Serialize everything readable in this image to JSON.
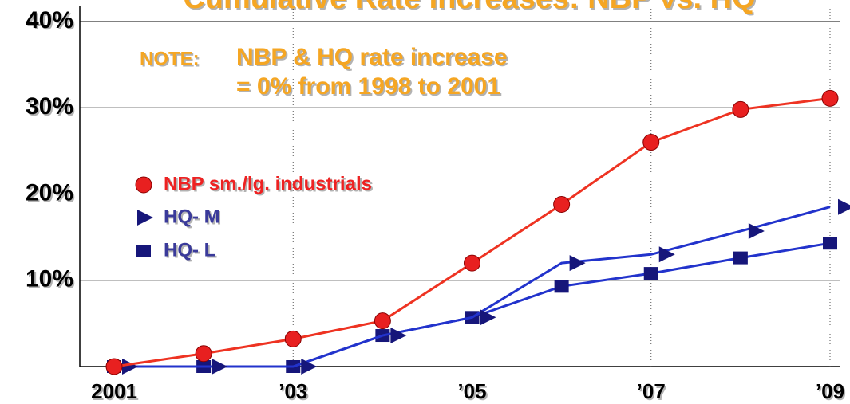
{
  "chart_data": {
    "type": "line",
    "title": "Cumulative Rate Increases: NBP vs. HQ",
    "annotations": [
      "NOTE:",
      "NBP & HQ rate increase",
      "= 0% from 1998 to 2001"
    ],
    "categories": [
      "2001",
      null,
      "’03",
      null,
      "’05",
      null,
      "’07",
      null,
      "’09"
    ],
    "series": [
      {
        "name": "NBP sm./lg. industrials",
        "color": "#ee3322",
        "marker_color": "#e82020",
        "marker": "circle",
        "values": [
          0,
          1.5,
          3.2,
          5.3,
          12.0,
          18.8,
          26.0,
          29.8,
          31.1
        ]
      },
      {
        "name": "HQ- M",
        "color": "#2233cc",
        "marker_color": "#16167a",
        "marker": "triangle",
        "values": [
          0,
          0,
          0,
          3.6,
          5.7,
          12.0,
          13.0,
          15.7,
          18.5
        ]
      },
      {
        "name": "HQ- L",
        "color": "#2233cc",
        "marker_color": "#16167a",
        "marker": "square",
        "values": [
          0,
          0,
          0,
          3.6,
          5.7,
          9.3,
          10.8,
          12.6,
          14.3
        ]
      }
    ],
    "ylim": [
      0,
      40
    ],
    "yticks": [
      {
        "value": 10,
        "label": "10%"
      },
      {
        "value": 20,
        "label": "20%"
      },
      {
        "value": 30,
        "label": "30%"
      },
      {
        "value": 40,
        "label": "40%"
      }
    ],
    "grid": true
  }
}
